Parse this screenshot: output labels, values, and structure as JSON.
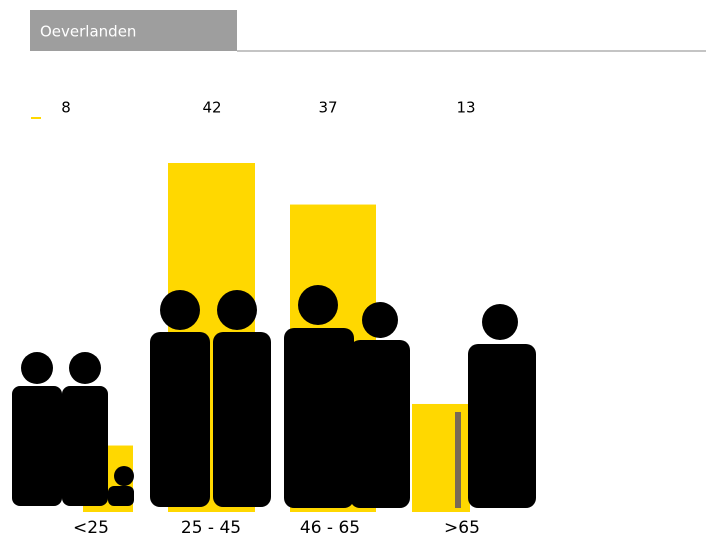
{
  "chart_data": {
    "type": "bar",
    "title": "Oeverlanden",
    "categories": [
      "<25",
      "25 - 45",
      "46 - 65",
      ">65"
    ],
    "values": [
      8,
      42,
      37,
      13
    ],
    "color": "#ffd800"
  }
}
